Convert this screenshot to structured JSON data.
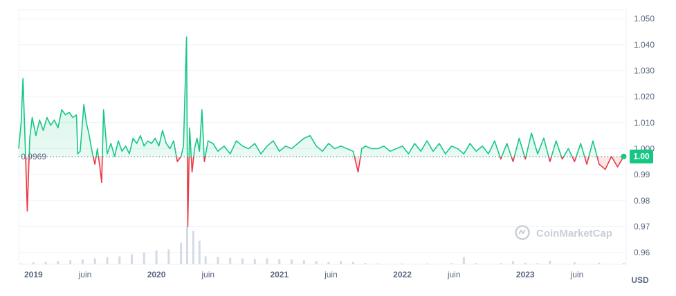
{
  "chart_data": {
    "type": "area",
    "currency_unit": "USD",
    "baseline_label": "0.9969",
    "baseline_value": 0.9969,
    "current_price_label": "1.00",
    "watermark": "CoinMarketCap",
    "colors": {
      "above": "#16c784",
      "below": "#ea3943",
      "volume": "#cfd6e4",
      "grid": "#eff2f5",
      "axis_text": "#58667e"
    },
    "y_axis": {
      "ticks": [
        "1.050",
        "1.040",
        "1.030",
        "1.020",
        "1.010",
        "1.000",
        "0.99",
        "0.98",
        "0.97",
        "0.96"
      ],
      "tick_values": [
        1.05,
        1.04,
        1.03,
        1.02,
        1.01,
        1.0,
        0.99,
        0.98,
        0.97,
        0.96
      ],
      "ylim": [
        0.9555,
        1.0535
      ]
    },
    "x_axis": {
      "xlim": [
        2018.88,
        2023.82
      ],
      "ticks": [
        {
          "label": "2019",
          "x": 2019.0,
          "bold": true
        },
        {
          "label": "juin",
          "x": 2019.42,
          "bold": false
        },
        {
          "label": "2020",
          "x": 2020.0,
          "bold": true
        },
        {
          "label": "juin",
          "x": 2020.42,
          "bold": false
        },
        {
          "label": "2021",
          "x": 2021.0,
          "bold": true
        },
        {
          "label": "juin",
          "x": 2021.42,
          "bold": false
        },
        {
          "label": "2022",
          "x": 2022.0,
          "bold": true
        },
        {
          "label": "juin",
          "x": 2022.42,
          "bold": false
        },
        {
          "label": "2023",
          "x": 2023.0,
          "bold": true
        },
        {
          "label": "juin",
          "x": 2023.42,
          "bold": false
        }
      ]
    },
    "series": [
      {
        "values": [
          [
            2018.88,
            1.0
          ],
          [
            2018.9,
            1.01
          ],
          [
            2018.915,
            1.027
          ],
          [
            2018.93,
            1.006
          ],
          [
            2018.95,
            0.976
          ],
          [
            2018.97,
            1.004
          ],
          [
            2018.99,
            1.012
          ],
          [
            2019.02,
            1.005
          ],
          [
            2019.05,
            1.011
          ],
          [
            2019.08,
            1.007
          ],
          [
            2019.11,
            1.012
          ],
          [
            2019.14,
            1.009
          ],
          [
            2019.17,
            1.011
          ],
          [
            2019.2,
            1.008
          ],
          [
            2019.23,
            1.015
          ],
          [
            2019.26,
            1.013
          ],
          [
            2019.29,
            1.014
          ],
          [
            2019.32,
            1.012
          ],
          [
            2019.35,
            1.013
          ],
          [
            2019.36,
            0.998
          ],
          [
            2019.38,
            0.999
          ],
          [
            2019.41,
            1.017
          ],
          [
            2019.43,
            1.01
          ],
          [
            2019.45,
            1.006
          ],
          [
            2019.48,
            0.998
          ],
          [
            2019.5,
            0.994
          ],
          [
            2019.52,
            1.0
          ],
          [
            2019.54,
            0.993
          ],
          [
            2019.555,
            0.987
          ],
          [
            2019.57,
            1.015
          ],
          [
            2019.6,
            0.998
          ],
          [
            2019.63,
            1.002
          ],
          [
            2019.66,
            0.997
          ],
          [
            2019.69,
            1.003
          ],
          [
            2019.72,
            0.999
          ],
          [
            2019.75,
            1.001
          ],
          [
            2019.78,
            0.998
          ],
          [
            2019.81,
            1.004
          ],
          [
            2019.84,
            1.002
          ],
          [
            2019.87,
            1.005
          ],
          [
            2019.9,
            1.001
          ],
          [
            2019.93,
            1.003
          ],
          [
            2019.96,
            1.002
          ],
          [
            2019.99,
            1.004
          ],
          [
            2020.02,
            1.001
          ],
          [
            2020.05,
            1.007
          ],
          [
            2020.08,
            1.002
          ],
          [
            2020.11,
            1.0
          ],
          [
            2020.14,
            1.003
          ],
          [
            2020.17,
            0.995
          ],
          [
            2020.2,
            0.997
          ],
          [
            2020.22,
            1.001
          ],
          [
            2020.245,
            1.043
          ],
          [
            2020.255,
            0.97
          ],
          [
            2020.27,
            1.008
          ],
          [
            2020.29,
            0.991
          ],
          [
            2020.31,
            1.0
          ],
          [
            2020.33,
            1.004
          ],
          [
            2020.35,
            0.999
          ],
          [
            2020.37,
            1.015
          ],
          [
            2020.39,
            0.995
          ],
          [
            2020.42,
            1.003
          ],
          [
            2020.46,
            1.002
          ],
          [
            2020.5,
            0.999
          ],
          [
            2020.55,
            1.001
          ],
          [
            2020.6,
            0.998
          ],
          [
            2020.65,
            1.003
          ],
          [
            2020.7,
            1.001
          ],
          [
            2020.75,
            1.0
          ],
          [
            2020.8,
            1.002
          ],
          [
            2020.85,
            0.998
          ],
          [
            2020.9,
            1.001
          ],
          [
            2020.95,
            1.003
          ],
          [
            2021.0,
            0.999
          ],
          [
            2021.05,
            1.001
          ],
          [
            2021.1,
            1.0
          ],
          [
            2021.15,
            1.002
          ],
          [
            2021.2,
            1.004
          ],
          [
            2021.25,
            1.005
          ],
          [
            2021.3,
            1.001
          ],
          [
            2021.35,
            0.999
          ],
          [
            2021.4,
            1.002
          ],
          [
            2021.45,
            1.0
          ],
          [
            2021.5,
            1.001
          ],
          [
            2021.55,
            1.0
          ],
          [
            2021.6,
            0.999
          ],
          [
            2021.64,
            0.991
          ],
          [
            2021.67,
            1.0
          ],
          [
            2021.7,
            1.001
          ],
          [
            2021.75,
            1.0
          ],
          [
            2021.8,
            1.0
          ],
          [
            2021.85,
            1.001
          ],
          [
            2021.9,
            0.999
          ],
          [
            2021.95,
            1.0
          ],
          [
            2022.0,
            1.001
          ],
          [
            2022.05,
            0.998
          ],
          [
            2022.1,
            1.002
          ],
          [
            2022.15,
            0.999
          ],
          [
            2022.2,
            1.003
          ],
          [
            2022.25,
            0.999
          ],
          [
            2022.3,
            1.002
          ],
          [
            2022.35,
            0.998
          ],
          [
            2022.4,
            1.001
          ],
          [
            2022.45,
            1.0
          ],
          [
            2022.5,
            0.998
          ],
          [
            2022.55,
            1.002
          ],
          [
            2022.6,
            0.999
          ],
          [
            2022.65,
            1.001
          ],
          [
            2022.7,
            0.998
          ],
          [
            2022.75,
            1.003
          ],
          [
            2022.8,
            0.996
          ],
          [
            2022.85,
            1.002
          ],
          [
            2022.9,
            0.995
          ],
          [
            2022.95,
            1.004
          ],
          [
            2023.0,
            0.996
          ],
          [
            2023.05,
            1.006
          ],
          [
            2023.1,
            0.998
          ],
          [
            2023.15,
            1.004
          ],
          [
            2023.2,
            0.995
          ],
          [
            2023.25,
            1.003
          ],
          [
            2023.3,
            0.996
          ],
          [
            2023.35,
            1.0
          ],
          [
            2023.4,
            0.995
          ],
          [
            2023.45,
            1.002
          ],
          [
            2023.5,
            0.994
          ],
          [
            2023.55,
            1.003
          ],
          [
            2023.6,
            0.994
          ],
          [
            2023.65,
            0.992
          ],
          [
            2023.7,
            0.997
          ],
          [
            2023.75,
            0.993
          ],
          [
            2023.8,
            0.997
          ]
        ]
      }
    ],
    "volume_series": {
      "values": [
        [
          2018.9,
          0.02
        ],
        [
          2019.0,
          0.05
        ],
        [
          2019.1,
          0.06
        ],
        [
          2019.2,
          0.08
        ],
        [
          2019.3,
          0.1
        ],
        [
          2019.4,
          0.12
        ],
        [
          2019.5,
          0.15
        ],
        [
          2019.6,
          0.18
        ],
        [
          2019.7,
          0.2
        ],
        [
          2019.8,
          0.25
        ],
        [
          2019.9,
          0.3
        ],
        [
          2020.0,
          0.35
        ],
        [
          2020.1,
          0.38
        ],
        [
          2020.2,
          0.55
        ],
        [
          2020.25,
          0.95
        ],
        [
          2020.3,
          0.85
        ],
        [
          2020.35,
          0.6
        ],
        [
          2020.4,
          0.2
        ],
        [
          2020.5,
          0.18
        ],
        [
          2020.6,
          0.16
        ],
        [
          2020.7,
          0.15
        ],
        [
          2020.8,
          0.14
        ],
        [
          2020.9,
          0.15
        ],
        [
          2021.0,
          0.13
        ],
        [
          2021.1,
          0.12
        ],
        [
          2021.2,
          0.1
        ],
        [
          2021.3,
          0.08
        ],
        [
          2021.4,
          0.06
        ],
        [
          2021.5,
          0.08
        ],
        [
          2021.6,
          0.06
        ],
        [
          2021.7,
          0.03
        ],
        [
          2021.8,
          0.02
        ],
        [
          2022.0,
          0.02
        ],
        [
          2022.2,
          0.02
        ],
        [
          2022.4,
          0.03
        ],
        [
          2022.5,
          0.18
        ],
        [
          2022.6,
          0.03
        ],
        [
          2022.8,
          0.03
        ],
        [
          2022.9,
          0.08
        ],
        [
          2023.0,
          0.04
        ],
        [
          2023.1,
          0.03
        ],
        [
          2023.2,
          0.09
        ],
        [
          2023.4,
          0.05
        ],
        [
          2023.6,
          0.04
        ],
        [
          2023.8,
          0.03
        ]
      ]
    }
  }
}
